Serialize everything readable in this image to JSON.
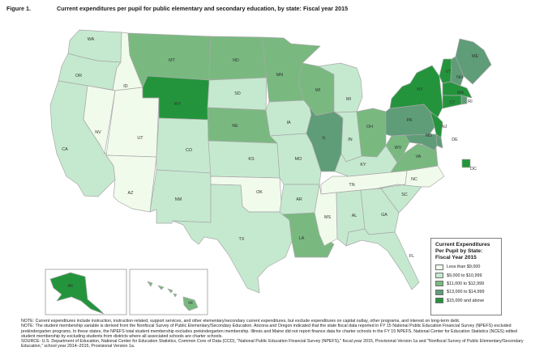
{
  "figure": {
    "number": "Figure 1.",
    "title": "Current expenditures per pupil for public elementary and secondary education, by state: Fiscal year 2015"
  },
  "colors": {
    "lt9": "#f1fbec",
    "9to11": "#c5e9cf",
    "11to13": "#79b980",
    "13to15": "#5f9c78",
    "15up": "#24943c",
    "border": "#a8a8a8",
    "text": "#333333"
  },
  "legend": {
    "title_lines": [
      "Current Expenditures",
      "Per Pupil by State:",
      "Fiscal Year 2015"
    ],
    "items": [
      {
        "key": "lt9",
        "label": "Less than $9,000"
      },
      {
        "key": "9to11",
        "label": "$9,000 to $10,999"
      },
      {
        "key": "11to13",
        "label": "$11,000 to $12,999"
      },
      {
        "key": "13to15",
        "label": "$13,000 to $14,999"
      },
      {
        "key": "15up",
        "label": "$15,000 and above"
      }
    ]
  },
  "states": [
    {
      "abbr": "WA",
      "cat": "9to11"
    },
    {
      "abbr": "OR",
      "cat": "9to11"
    },
    {
      "abbr": "CA",
      "cat": "9to11"
    },
    {
      "abbr": "NV",
      "cat": "lt9"
    },
    {
      "abbr": "ID",
      "cat": "lt9"
    },
    {
      "abbr": "UT",
      "cat": "lt9"
    },
    {
      "abbr": "AZ",
      "cat": "lt9"
    },
    {
      "abbr": "MT",
      "cat": "11to13"
    },
    {
      "abbr": "WY",
      "cat": "15up"
    },
    {
      "abbr": "CO",
      "cat": "9to11"
    },
    {
      "abbr": "NM",
      "cat": "9to11"
    },
    {
      "abbr": "ND",
      "cat": "11to13"
    },
    {
      "abbr": "SD",
      "cat": "9to11"
    },
    {
      "abbr": "NE",
      "cat": "11to13"
    },
    {
      "abbr": "KS",
      "cat": "9to11"
    },
    {
      "abbr": "OK",
      "cat": "lt9"
    },
    {
      "abbr": "TX",
      "cat": "9to11"
    },
    {
      "abbr": "MN",
      "cat": "11to13"
    },
    {
      "abbr": "IA",
      "cat": "9to11"
    },
    {
      "abbr": "MO",
      "cat": "9to11"
    },
    {
      "abbr": "AR",
      "cat": "9to11"
    },
    {
      "abbr": "LA",
      "cat": "11to13"
    },
    {
      "abbr": "WI",
      "cat": "11to13"
    },
    {
      "abbr": "IL",
      "cat": "13to15"
    },
    {
      "abbr": "MI",
      "cat": "9to11"
    },
    {
      "abbr": "IN",
      "cat": "9to11"
    },
    {
      "abbr": "OH",
      "cat": "11to13"
    },
    {
      "abbr": "KY",
      "cat": "9to11"
    },
    {
      "abbr": "TN",
      "cat": "lt9"
    },
    {
      "abbr": "MS",
      "cat": "lt9"
    },
    {
      "abbr": "AL",
      "cat": "9to11"
    },
    {
      "abbr": "GA",
      "cat": "9to11"
    },
    {
      "abbr": "FL",
      "cat": "9to11"
    },
    {
      "abbr": "SC",
      "cat": "9to11"
    },
    {
      "abbr": "NC",
      "cat": "lt9"
    },
    {
      "abbr": "VA",
      "cat": "11to13"
    },
    {
      "abbr": "WV",
      "cat": "11to13"
    },
    {
      "abbr": "PA",
      "cat": "13to15"
    },
    {
      "abbr": "NY",
      "cat": "15up"
    },
    {
      "abbr": "VT",
      "cat": "15up"
    },
    {
      "abbr": "NH",
      "cat": "13to15"
    },
    {
      "abbr": "ME",
      "cat": "13to15"
    },
    {
      "abbr": "MA",
      "cat": "15up"
    },
    {
      "abbr": "RI",
      "cat": "13to15"
    },
    {
      "abbr": "CT",
      "cat": "15up"
    },
    {
      "abbr": "NJ",
      "cat": "15up"
    },
    {
      "abbr": "DE",
      "cat": "13to15"
    },
    {
      "abbr": "MD",
      "cat": "13to15"
    },
    {
      "abbr": "DC",
      "cat": "15up"
    },
    {
      "abbr": "AK",
      "cat": "15up"
    },
    {
      "abbr": "HI",
      "cat": "11to13"
    }
  ],
  "notes": [
    "NOTE: Current expenditures include instruction, instruction-related, support services, and other elementary/secondary current expenditures, but exclude expenditures on capital outlay, other programs, and interest on long-term debt.",
    "NOTE: The student membership variable is derived from the Nonfiscal Survey of Public Elementary/Secondary Education. Arizona and Oregon indicated that the state fiscal data reported in FY 15 National Public Education Financial Survey (NPEFS) excluded prekindergarten programs. In these states, the NPEFS total student membership excludes prekindergarten membership. Illinois and Maine did not report finance data for charter schools in the FY 15 NPEFS. National Center for Education Statistics (NCES) edited student membership by excluding students from districts where all associated schools are charter schools.",
    "SOURCE: U.S. Department of Education, National Center for Education Statistics, Common Core of Data (CCD), \"National Public Education Financial Survey (NPEFS),\" fiscal year 2015, Provisional Version 1a and \"Nonfiscal Survey of Public Elementary/Secondary Education,\" school year 2014–2015, Provisional Version 1a."
  ]
}
